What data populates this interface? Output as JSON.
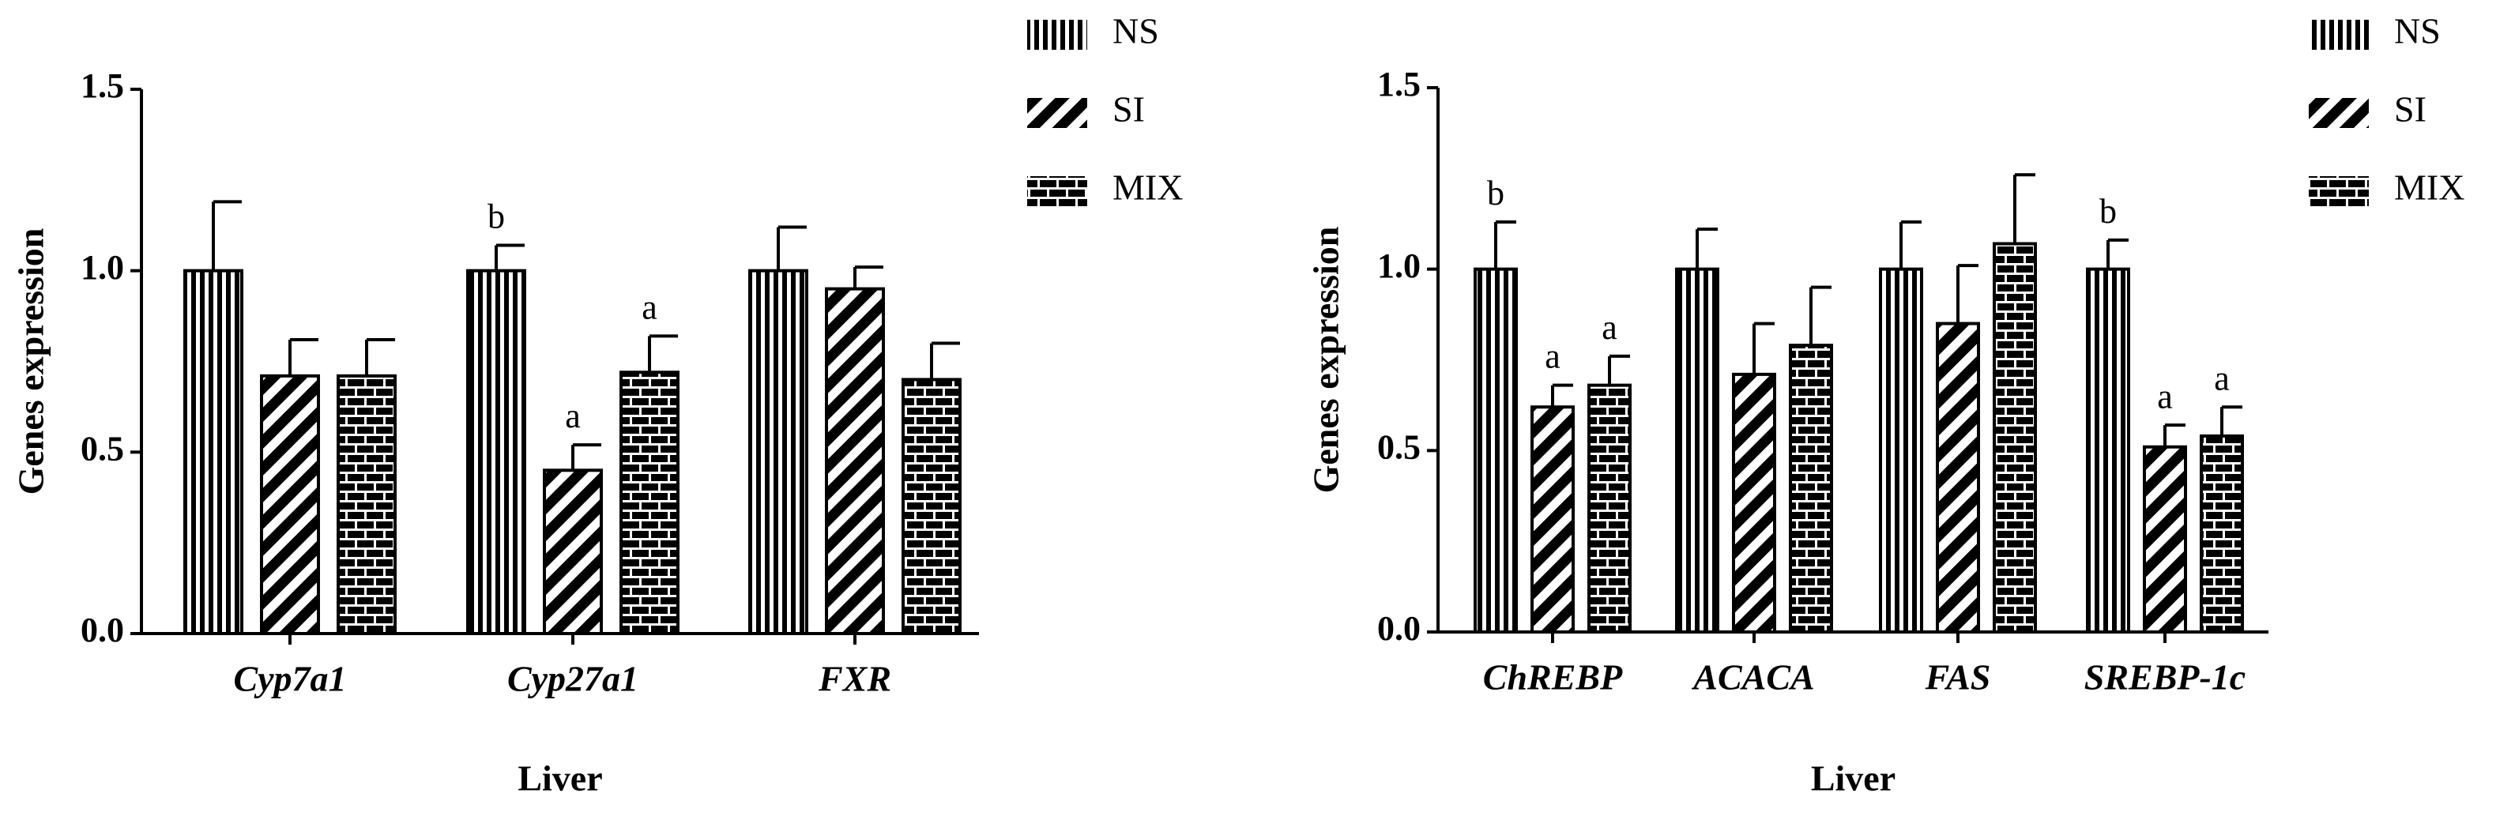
{
  "chart_data": [
    {
      "type": "bar",
      "x_label": "Liver",
      "y_label": "Genes expression",
      "legend": "right",
      "categories": [
        "Cyp7a1",
        "Cyp27a1",
        "FXR"
      ],
      "series": [
        {
          "name": "NS",
          "pattern": "vertical",
          "color": "#000000",
          "values": [
            1.0,
            1.0,
            1.0
          ],
          "errors": [
            0.19,
            0.07,
            0.12
          ],
          "sig_labels": [
            null,
            "b",
            null
          ]
        },
        {
          "name": "SI",
          "pattern": "diagonal",
          "color": "#000000",
          "values": [
            0.71,
            0.45,
            0.95
          ],
          "errors": [
            0.1,
            0.07,
            0.06
          ],
          "sig_labels": [
            null,
            "a",
            null
          ]
        },
        {
          "name": "MIX",
          "pattern": "brick",
          "color": "#000000",
          "values": [
            0.71,
            0.72,
            0.7
          ],
          "errors": [
            0.1,
            0.1,
            0.1
          ],
          "sig_labels": [
            null,
            "a",
            null
          ]
        }
      ],
      "ylim": [
        0,
        1.5
      ],
      "yticks": [
        {
          "value": 0,
          "label": "0.0"
        },
        0.5,
        {
          "value": 1,
          "label": "1.0"
        },
        1.5
      ]
    },
    {
      "type": "bar",
      "x_label": "Liver",
      "y_label": "Genes expression",
      "legend": "right",
      "categories": [
        "ChREBP",
        "ACACA",
        "FAS",
        "SREBP-1c"
      ],
      "series": [
        {
          "name": "NS",
          "pattern": "vertical",
          "color": "#000000",
          "values": [
            1.0,
            1.0,
            1.0,
            1.0
          ],
          "errors": [
            0.13,
            0.11,
            0.13,
            0.08
          ],
          "sig_labels": [
            "b",
            null,
            null,
            "b"
          ]
        },
        {
          "name": "SI",
          "pattern": "diagonal",
          "color": "#000000",
          "values": [
            0.62,
            0.71,
            0.85,
            0.51
          ],
          "errors": [
            0.06,
            0.14,
            0.16,
            0.06
          ],
          "sig_labels": [
            "a",
            null,
            null,
            "a"
          ]
        },
        {
          "name": "MIX",
          "pattern": "brick",
          "color": "#000000",
          "values": [
            0.68,
            0.79,
            1.07,
            0.54
          ],
          "errors": [
            0.08,
            0.16,
            0.19,
            0.08
          ],
          "sig_labels": [
            "a",
            null,
            null,
            "a"
          ]
        }
      ],
      "ylim": [
        0,
        1.5
      ],
      "yticks": [
        {
          "value": 0,
          "label": "0.0"
        },
        0.5,
        {
          "value": 1,
          "label": "1.0"
        },
        1.5
      ]
    }
  ]
}
